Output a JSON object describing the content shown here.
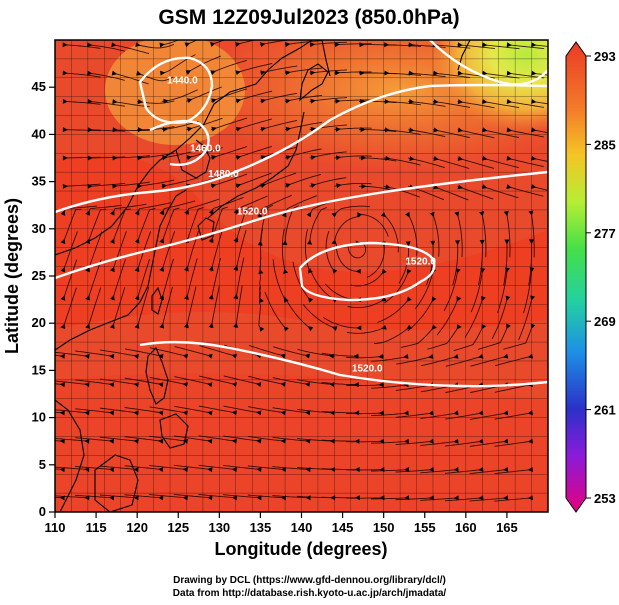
{
  "title": "GSM 12Z09Jul2023 (850.0hPa)",
  "chart_data": {
    "type": "heatmap",
    "title": "GSM 12Z09Jul2023 (850.0hPa)",
    "xlabel": "Longitude (degrees)",
    "ylabel": "Latitude  (degrees)",
    "xlim": [
      110,
      170
    ],
    "ylim": [
      0,
      50
    ],
    "x_ticks": [
      "110",
      "115",
      "120",
      "125",
      "130",
      "135",
      "140",
      "145",
      "150",
      "155",
      "160",
      "165"
    ],
    "y_ticks": [
      "0",
      "5",
      "10",
      "15",
      "20",
      "25",
      "30",
      "35",
      "40",
      "45"
    ],
    "colorbar": {
      "min": 253,
      "max": 293,
      "tick_labels": [
        "293",
        "285",
        "277",
        "269",
        "261",
        "253"
      ],
      "tick_values": [
        293,
        285,
        277,
        269,
        261,
        253
      ]
    },
    "contour_labels": [
      {
        "text": "1520.0",
        "lon": 154.5,
        "lat": 26.2
      },
      {
        "text": "1520.0",
        "lon": 134.0,
        "lat": 31.5
      },
      {
        "text": "1520.0",
        "lon": 148.0,
        "lat": 14.9
      },
      {
        "text": "1480.0",
        "lon": 130.5,
        "lat": 35.5
      },
      {
        "text": "1460.0",
        "lon": 128.3,
        "lat": 38.2
      },
      {
        "text": "1440.0",
        "lon": 125.5,
        "lat": 45.4
      }
    ],
    "grid": true
  },
  "credits": [
    "Drawing by DCL (https://www.gfd-dennou.org/library/dcl/)",
    "Data from http://database.rish.kyoto-u.ac.jp/arch/jmadata/"
  ],
  "colors": {
    "warm": "#e8452a",
    "hot": "#f03a1e",
    "orange": "#f39a2a",
    "yellow": "#e8e84a",
    "green": "#8fd944",
    "colorbar": [
      "#e6007e",
      "#7a1fd6",
      "#2a31c8",
      "#1e9fe6",
      "#22d19a",
      "#48e04a",
      "#d0f030",
      "#f6b020",
      "#f06a28",
      "#ee3a22"
    ]
  }
}
